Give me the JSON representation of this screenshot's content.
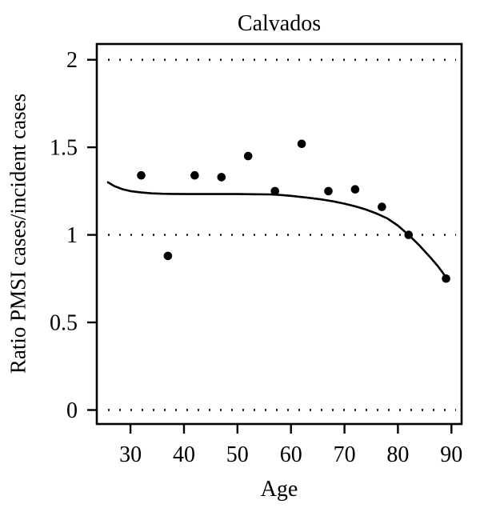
{
  "figure": {
    "title": "Calvados",
    "xlabel": "Age",
    "ylabel": "Ratio PMSI cases/incident cases"
  },
  "chart_data": {
    "type": "scatter",
    "title": "Calvados",
    "xlabel": "Age",
    "ylabel": "Ratio PMSI cases/incident cases",
    "xlim": [
      23.7,
      91.9
    ],
    "ylim": [
      -0.08,
      2.09
    ],
    "xticks": [
      30,
      40,
      50,
      60,
      70,
      80,
      90
    ],
    "xtick_labels": [
      "30",
      "40",
      "50",
      "60",
      "70",
      "80",
      "90"
    ],
    "yticks": [
      0,
      0.5,
      1,
      1.5,
      2
    ],
    "ytick_labels": [
      "0",
      "0.5",
      "1",
      "1.5",
      "2"
    ],
    "gridlines_y": [
      0,
      1,
      2
    ],
    "grid_style": "dotted",
    "legend": "none",
    "marker_shape": "filled-circle",
    "marker_color": "#000000",
    "line_color": "#000000",
    "axis_color": "#000000",
    "background_color": "#ffffff",
    "points": [
      [
        32,
        1.34
      ],
      [
        37,
        0.88
      ],
      [
        42,
        1.34
      ],
      [
        47,
        1.33
      ],
      [
        52,
        1.45
      ],
      [
        57,
        1.25
      ],
      [
        62,
        1.52
      ],
      [
        67,
        1.25
      ],
      [
        72,
        1.26
      ],
      [
        77,
        1.16
      ],
      [
        82,
        1.0
      ],
      [
        89,
        0.75
      ]
    ],
    "smooth_curve": [
      [
        25.8,
        1.3
      ],
      [
        27.0,
        1.278
      ],
      [
        28.5,
        1.261
      ],
      [
        30.0,
        1.25
      ],
      [
        32.0,
        1.242
      ],
      [
        34.0,
        1.237
      ],
      [
        36.0,
        1.235
      ],
      [
        38.0,
        1.234
      ],
      [
        41.0,
        1.233
      ],
      [
        44.0,
        1.233
      ],
      [
        47.0,
        1.233
      ],
      [
        50.0,
        1.233
      ],
      [
        53.0,
        1.232
      ],
      [
        56.0,
        1.231
      ],
      [
        58.0,
        1.228
      ],
      [
        60.0,
        1.223
      ],
      [
        62.0,
        1.216
      ],
      [
        64.0,
        1.209
      ],
      [
        66.0,
        1.201
      ],
      [
        68.0,
        1.191
      ],
      [
        70.0,
        1.178
      ],
      [
        72.0,
        1.163
      ],
      [
        74.0,
        1.145
      ],
      [
        76.0,
        1.122
      ],
      [
        78.0,
        1.094
      ],
      [
        80.0,
        1.053
      ],
      [
        82.0,
        1.0
      ],
      [
        84.0,
        0.94
      ],
      [
        86.0,
        0.873
      ],
      [
        87.5,
        0.82
      ],
      [
        89.0,
        0.758
      ]
    ]
  }
}
